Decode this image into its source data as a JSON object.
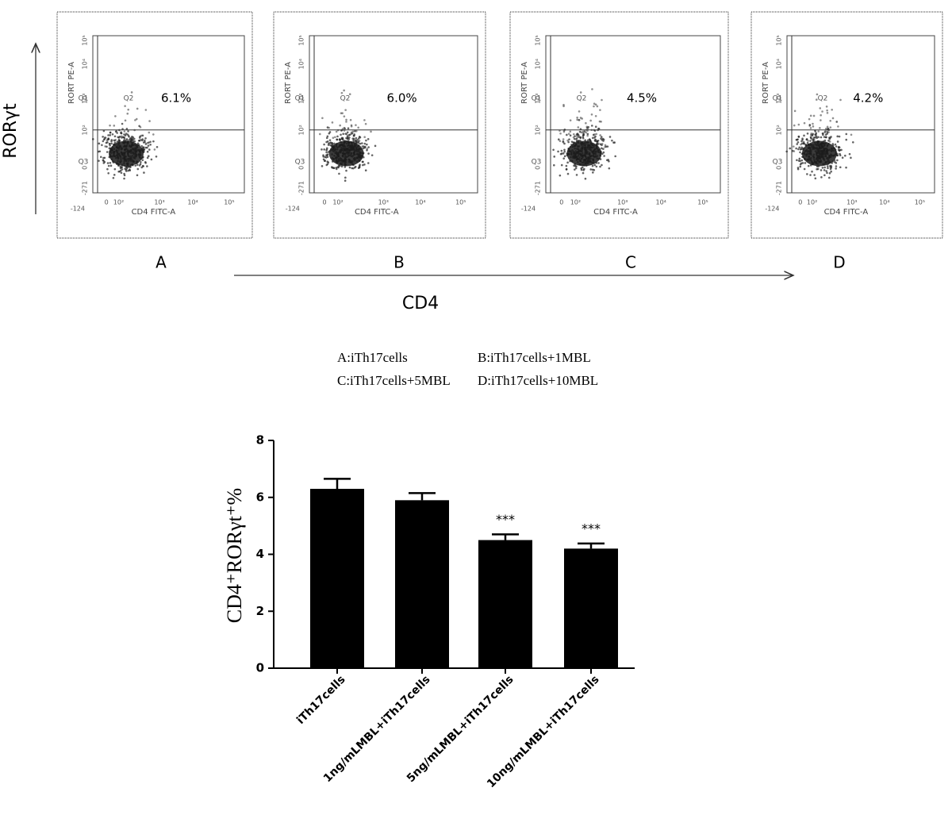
{
  "flow_panels": [
    {
      "letter": "A",
      "percent": "6.1%",
      "x_label": "CD4 FITC-A",
      "y_label": "RORT PE-A",
      "quadrants": [
        "Q1",
        "Q2",
        "Q3"
      ],
      "x_ticks": [
        "-124",
        "0",
        "10²",
        "10³",
        "10⁴",
        "10⁵"
      ],
      "y_ticks": [
        "-271",
        "0",
        "10²",
        "10³",
        "10⁴",
        "10⁵"
      ]
    },
    {
      "letter": "B",
      "percent": "6.0%",
      "x_label": "CD4 FITC-A",
      "y_label": "RORT PE-A",
      "quadrants": [
        "Q1",
        "Q2",
        "Q3"
      ],
      "x_ticks": [
        "-124",
        "0",
        "10²",
        "10³",
        "10⁴",
        "10⁵"
      ],
      "y_ticks": [
        "-271",
        "0",
        "10²",
        "10³",
        "10⁴",
        "10⁵"
      ]
    },
    {
      "letter": "C",
      "percent": "4.5%",
      "x_label": "CD4 FITC-A",
      "y_label": "RORT PE-A",
      "quadrants": [
        "Q1",
        "Q2",
        "Q3"
      ],
      "x_ticks": [
        "-124",
        "0",
        "10²",
        "10³",
        "10⁴",
        "10⁵"
      ],
      "y_ticks": [
        "-271",
        "0",
        "10²",
        "10³",
        "10⁴",
        "10⁵"
      ]
    },
    {
      "letter": "D",
      "percent": "4.2%",
      "x_label": "CD4 FITC-A",
      "y_label": "RORT PE-A",
      "quadrants": [
        "Q1",
        "Q2",
        "Q3"
      ],
      "x_ticks": [
        "-124",
        "0",
        "10²",
        "10³",
        "10⁴",
        "10⁵"
      ],
      "y_ticks": [
        "-271",
        "0",
        "10²",
        "10³",
        "10⁴",
        "10⁵"
      ]
    }
  ],
  "y_arrow_label": "RORγt",
  "x_arrow_label": "CD4",
  "legend": [
    "A:iTh17cells",
    "B:iTh17cells+1MBL",
    "C:iTh17cells+5MBL",
    "D:iTh17cells+10MBL"
  ],
  "chart_data": {
    "type": "bar",
    "y_label": "CD4⁺RORγt⁺%",
    "categories": [
      "iTh17cells",
      "1ng/mLMBL+iTh17cells",
      "5ng/mLMBL+iTh17cells",
      "10ng/mLMBL+iTh17cells"
    ],
    "values": [
      6.3,
      5.9,
      4.5,
      4.2
    ],
    "errors": [
      0.35,
      0.25,
      0.2,
      0.18
    ],
    "significance": [
      null,
      null,
      "***",
      "***"
    ],
    "color": "#000000",
    "ylim": [
      0,
      8
    ],
    "yticks": [
      0,
      2,
      4,
      6,
      8
    ]
  }
}
